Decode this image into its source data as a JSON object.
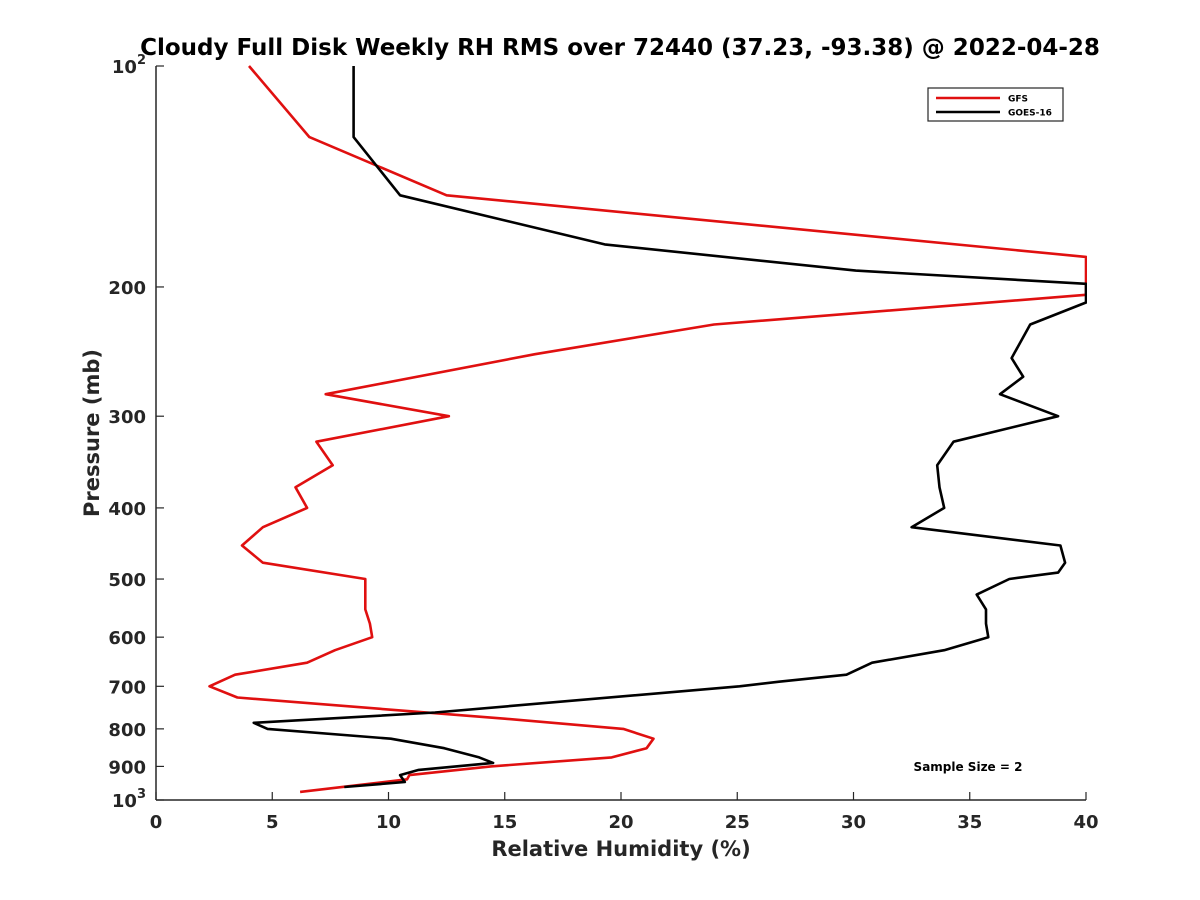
{
  "chart_data": {
    "type": "line",
    "title": "Cloudy Full Disk Weekly RH RMS over 72440 (37.23, -93.38) @ 2022-04-28",
    "xlabel": "Relative Humidity (%)",
    "ylabel": "Pressure (mb)",
    "xlim": [
      0,
      40
    ],
    "ylim": [
      100,
      1000
    ],
    "y_scale": "log",
    "y_reversed": true,
    "grid": false,
    "legend_position": "top-right",
    "x_ticks": [
      {
        "value": 0,
        "label": "0"
      },
      {
        "value": 5,
        "label": "5"
      },
      {
        "value": 10,
        "label": "10"
      },
      {
        "value": 15,
        "label": "15"
      },
      {
        "value": 20,
        "label": "20"
      },
      {
        "value": 25,
        "label": "25"
      },
      {
        "value": 30,
        "label": "30"
      },
      {
        "value": 35,
        "label": "35"
      },
      {
        "value": 40,
        "label": "40"
      }
    ],
    "y_ticks": [
      {
        "value": 100,
        "label": "10",
        "exp": "2"
      },
      {
        "value": 200,
        "label": "200",
        "exp": ""
      },
      {
        "value": 300,
        "label": "300",
        "exp": ""
      },
      {
        "value": 400,
        "label": "400",
        "exp": ""
      },
      {
        "value": 500,
        "label": "500",
        "exp": ""
      },
      {
        "value": 600,
        "label": "600",
        "exp": ""
      },
      {
        "value": 700,
        "label": "700",
        "exp": ""
      },
      {
        "value": 800,
        "label": "800",
        "exp": ""
      },
      {
        "value": 900,
        "label": "900",
        "exp": ""
      },
      {
        "value": 1000,
        "label": "10",
        "exp": "3"
      }
    ],
    "annotation": "Sample Size = 2",
    "series": [
      {
        "name": "GFS",
        "color": "#e01010",
        "points": [
          [
            4.0,
            100
          ],
          [
            6.6,
            125
          ],
          [
            12.5,
            150
          ],
          [
            40.0,
            182
          ],
          [
            40.0,
            205
          ],
          [
            24.0,
            225
          ],
          [
            16.3,
            247
          ],
          [
            7.3,
            280
          ],
          [
            12.6,
            300
          ],
          [
            6.9,
            325
          ],
          [
            7.6,
            350
          ],
          [
            6.0,
            375
          ],
          [
            6.5,
            400
          ],
          [
            4.6,
            425
          ],
          [
            3.7,
            450
          ],
          [
            4.6,
            475
          ],
          [
            9.0,
            500
          ],
          [
            9.0,
            525
          ],
          [
            9.0,
            550
          ],
          [
            9.2,
            575
          ],
          [
            9.3,
            600
          ],
          [
            7.7,
            625
          ],
          [
            6.5,
            650
          ],
          [
            3.4,
            675
          ],
          [
            2.3,
            700
          ],
          [
            3.5,
            725
          ],
          [
            15.0,
            775
          ],
          [
            20.1,
            800
          ],
          [
            21.4,
            825
          ],
          [
            21.1,
            850
          ],
          [
            19.6,
            875
          ],
          [
            14.4,
            900
          ],
          [
            10.9,
            925
          ],
          [
            10.8,
            937
          ],
          [
            6.2,
            975
          ]
        ]
      },
      {
        "name": "GOES-16",
        "color": "#000000",
        "points": [
          [
            8.5,
            100
          ],
          [
            8.5,
            125
          ],
          [
            10.5,
            150
          ],
          [
            19.3,
            175
          ],
          [
            30.1,
            190
          ],
          [
            40.0,
            198
          ],
          [
            40.0,
            210
          ],
          [
            37.6,
            225
          ],
          [
            36.8,
            250
          ],
          [
            37.3,
            265
          ],
          [
            36.3,
            280
          ],
          [
            38.8,
            300
          ],
          [
            34.3,
            325
          ],
          [
            33.6,
            350
          ],
          [
            33.7,
            375
          ],
          [
            33.9,
            400
          ],
          [
            32.5,
            425
          ],
          [
            38.9,
            450
          ],
          [
            39.1,
            475
          ],
          [
            38.8,
            490
          ],
          [
            36.7,
            500
          ],
          [
            35.3,
            525
          ],
          [
            35.7,
            550
          ],
          [
            35.7,
            575
          ],
          [
            35.8,
            600
          ],
          [
            33.9,
            625
          ],
          [
            30.8,
            650
          ],
          [
            29.7,
            675
          ],
          [
            26.8,
            690
          ],
          [
            25.1,
            700
          ],
          [
            12.0,
            760
          ],
          [
            4.2,
            785
          ],
          [
            4.8,
            800
          ],
          [
            10.1,
            825
          ],
          [
            12.4,
            850
          ],
          [
            13.9,
            875
          ],
          [
            14.5,
            890
          ],
          [
            11.3,
            910
          ],
          [
            10.5,
            925
          ],
          [
            10.7,
            945
          ],
          [
            8.1,
            960
          ]
        ]
      }
    ]
  }
}
